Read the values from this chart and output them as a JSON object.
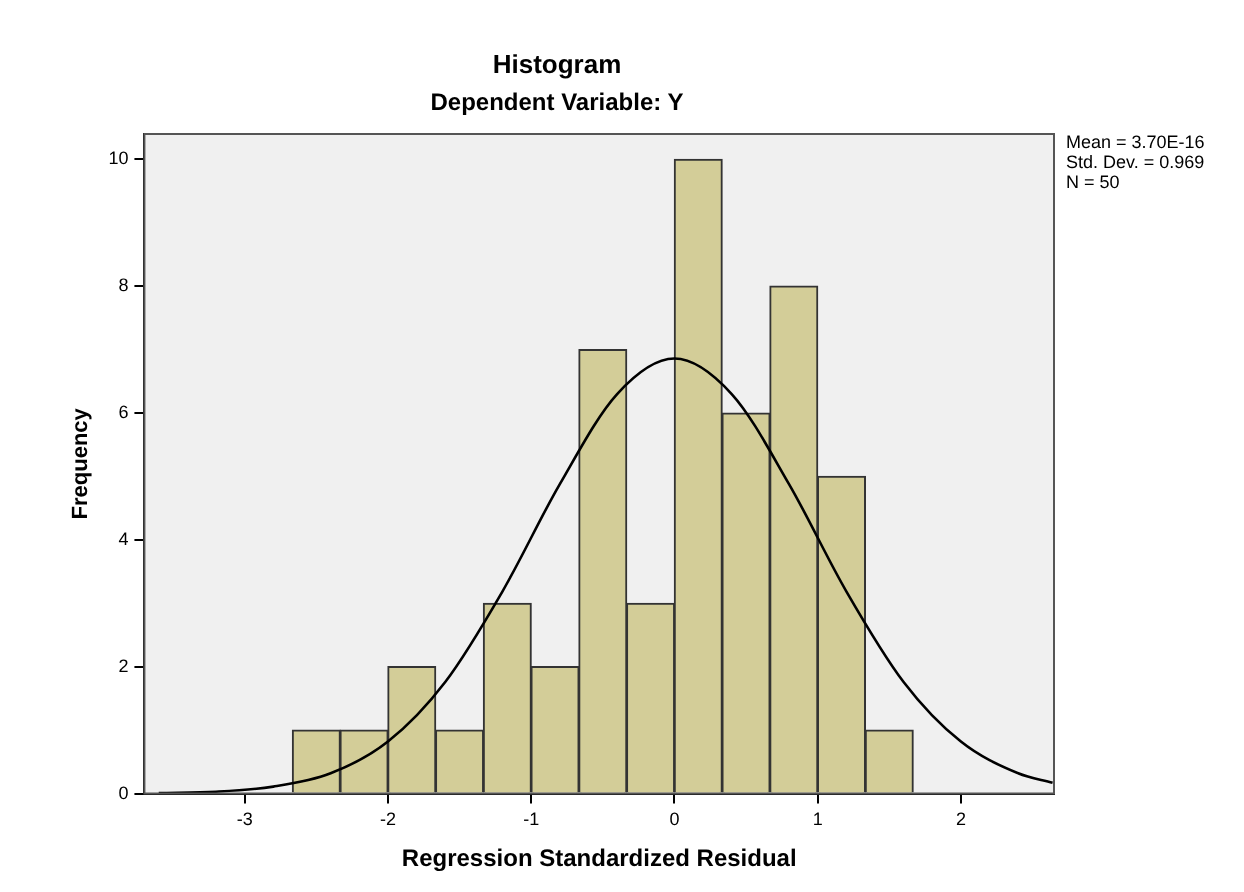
{
  "chart_data": {
    "type": "histogram",
    "title": "Histogram",
    "subtitle": "Dependent Variable: Y",
    "xlabel": "Regression Standardized Residual",
    "ylabel": "Frequency",
    "bins": [
      -2.667,
      -2.333,
      -2,
      -1.667,
      -1.333,
      -1,
      -0.667,
      -0.333,
      0,
      0.333,
      0.667,
      1,
      1.333,
      1.667
    ],
    "values": [
      1,
      1,
      2,
      1,
      3,
      2,
      7,
      3,
      10,
      6,
      8,
      5,
      1
    ],
    "color": "#d3cd98",
    "series": [
      {
        "type": "line",
        "color": "#000000",
        "x": [
          -3.6,
          -3.2,
          -2.8,
          -2.4,
          -2,
          -1.6,
          -1.2,
          -0.8,
          -0.4,
          0,
          0.4,
          0.8,
          1.2,
          1.6,
          2,
          2.4,
          2.64
        ],
        "values": [
          0.01,
          0.03,
          0.11,
          0.32,
          0.82,
          1.76,
          3.19,
          4.88,
          6.3,
          6.86,
          6.3,
          4.88,
          3.19,
          1.76,
          0.82,
          0.32,
          0.17
        ]
      }
    ],
    "xlim": [
      -3.7,
      2.65
    ],
    "xticks": [
      -3,
      -2,
      -1,
      0,
      1,
      2
    ],
    "ylim": [
      0,
      10.4
    ],
    "yticks": [
      0,
      2,
      4,
      6,
      8,
      10
    ],
    "annotations": [
      "Mean = 3.70E-16",
      "Std. Dev. = 0.969",
      "N = 50"
    ],
    "grid": false,
    "legend": false,
    "marker": "none"
  }
}
